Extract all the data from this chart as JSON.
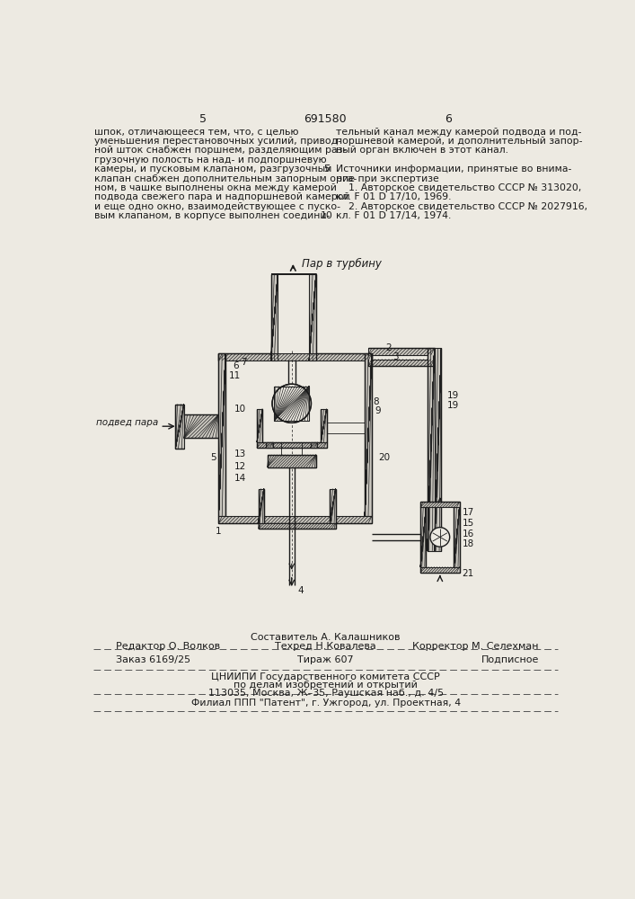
{
  "bg_color": "#edeae2",
  "page_number_left": "5",
  "page_number_center": "691580",
  "page_number_right": "6",
  "col_left_text": [
    "шпок, отличающееся тем, что, с целью",
    "уменьшения перестановочных усилий, привод-",
    "ной шток снабжен поршнем, разделяющим раз-",
    "грузочную полость на над- и подпоршневую",
    "камеры, и пусковым клапаном, разгрузочный",
    "клапан снабжен дополнительным запорным орга-",
    "ном, в чашке выполнены окна между камерой",
    "подвода свежего пара и надпоршневой камерой",
    "и еще одно окно, взаимодействующее с пуско-",
    "вым клапаном, в корпусе выполнен соедини-"
  ],
  "col_right_text": [
    "тельный канал между камерой подвода и под-",
    "поршневой камерой, и дополнительный запор-",
    "ный орган включен в этот канал.",
    "",
    "Источники информации, принятые во внима-",
    "ние при экспертизе",
    "    1. Авторское свидетельство СССР № 313020,",
    "кл. F 01 D 17/10, 1969.",
    "    2. Авторское свидетельство СССР № 2027916,",
    "кл. F 01 D 17/14, 1974."
  ],
  "footer_editor": "Редактор О. Волков",
  "footer_composer": "Составитель А. Калашников",
  "footer_techred": "Техред Н.Ковалева",
  "footer_corrector": "Корректор М. Селехман",
  "footer_order": "Заказ 6169/25",
  "footer_circulation": "Тираж 607",
  "footer_subscription": "Подписное",
  "footer_org_line1": "ЦНИИПИ Государственного комитета СССР",
  "footer_org_line2": "по делам изобретений и открытий",
  "footer_org_line3": "113035, Москва, Ж–35, Раушская наб., д. 4/5",
  "footer_branch": "Филиал ППП \"Патент\", г. Ужгород, ул. Проектная, 4",
  "diagram_label_top": "Пар в турбину",
  "diagram_label_left": "подвед пара"
}
